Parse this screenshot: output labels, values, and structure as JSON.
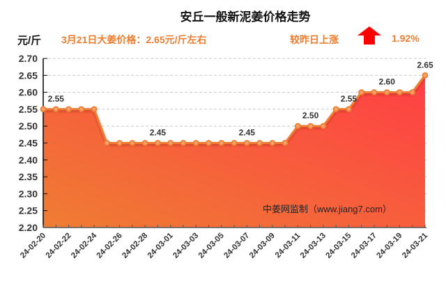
{
  "header": {
    "title": "安丘一般新泥姜价格走势",
    "unit": "元/斤",
    "price_note": "3月21日大姜价格：2.65元/斤左右",
    "change_label": "较昨日上涨",
    "change_icon": "up-arrow-icon",
    "change_pct": "1.92%"
  },
  "colors": {
    "line": "#ed7d31",
    "fill_top": "#ff3f45",
    "fill_bottom": "#ef7d33",
    "accent_text": "#ed7d31",
    "arrow": "#ff0000",
    "grid": "#c8c8c8"
  },
  "watermark": "中姜网监制（www.jiang7.com）",
  "chart_data": {
    "type": "area",
    "title": "安丘一般新泥姜价格走势",
    "xlabel": "",
    "ylabel": "元/斤",
    "ylim": [
      2.2,
      2.7
    ],
    "yticks": [
      "2.20",
      "2.25",
      "2.30",
      "2.35",
      "2.40",
      "2.45",
      "2.50",
      "2.55",
      "2.60",
      "2.65",
      "2.70"
    ],
    "grid": true,
    "x": [
      "24-02-20",
      "24-02-21",
      "24-02-22",
      "24-02-23",
      "24-02-24",
      "24-02-25",
      "24-02-26",
      "24-02-27",
      "24-02-28",
      "24-02-29",
      "24-03-01",
      "24-03-02",
      "24-03-03",
      "24-03-04",
      "24-03-05",
      "24-03-06",
      "24-03-07",
      "24-03-08",
      "24-03-09",
      "24-03-10",
      "24-03-11",
      "24-03-12",
      "24-03-13",
      "24-03-14",
      "24-03-15",
      "24-03-16",
      "24-03-17",
      "24-03-18",
      "24-03-19",
      "24-03-20",
      "24-03-21"
    ],
    "xtick_labels": [
      "24-02-20",
      "24-02-22",
      "24-02-24",
      "24-02-26",
      "24-02-28",
      "24-03-01",
      "24-03-03",
      "24-03-05",
      "24-03-07",
      "24-03-09",
      "24-03-11",
      "24-03-13",
      "24-03-15",
      "24-03-17",
      "24-03-19",
      "24-03-21"
    ],
    "series": [
      {
        "name": "安丘一般新泥姜",
        "values": [
          2.55,
          2.55,
          2.55,
          2.55,
          2.55,
          2.45,
          2.45,
          2.45,
          2.45,
          2.45,
          2.45,
          2.45,
          2.45,
          2.45,
          2.45,
          2.45,
          2.45,
          2.45,
          2.45,
          2.45,
          2.5,
          2.5,
          2.5,
          2.55,
          2.55,
          2.6,
          2.6,
          2.6,
          2.6,
          2.6,
          2.65
        ]
      }
    ],
    "annotations": [
      {
        "index": 1,
        "text": "2.55"
      },
      {
        "index": 9,
        "text": "2.45"
      },
      {
        "index": 16,
        "text": "2.45"
      },
      {
        "index": 21,
        "text": "2.50"
      },
      {
        "index": 24,
        "text": "2.55"
      },
      {
        "index": 27,
        "text": "2.60"
      },
      {
        "index": 30,
        "text": "2.65"
      }
    ]
  }
}
